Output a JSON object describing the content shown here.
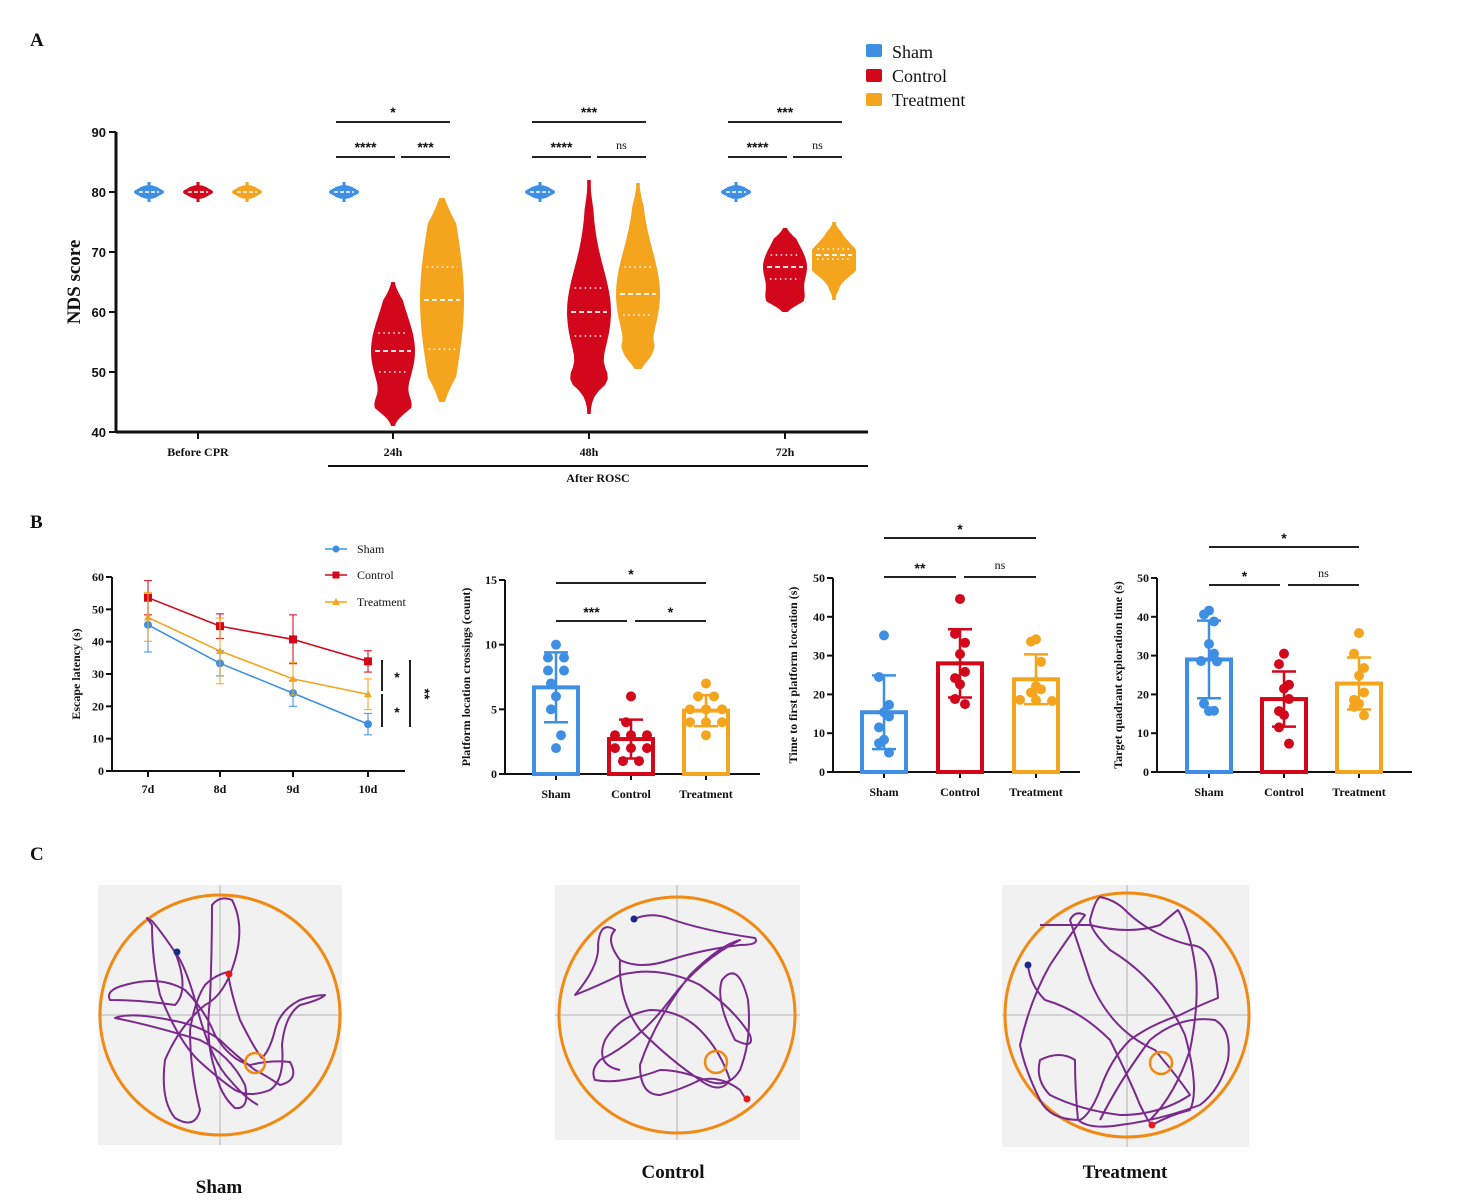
{
  "colors": {
    "Sham": "#3e8fe3",
    "Control": "#d2071b",
    "Treatment": "#f5a41e",
    "axis": "#111111",
    "path": "#7a2a8c",
    "pool": "#f08a12"
  },
  "panel_labels": {
    "A": "A",
    "B": "B",
    "C": "C"
  },
  "chart_data": [
    {
      "id": "A",
      "type": "violin",
      "title": "",
      "ylabel": "NDS score",
      "xlabel": "",
      "ylim": [
        40,
        90
      ],
      "yticks": [
        40,
        50,
        60,
        70,
        80,
        90
      ],
      "legend": {
        "position": "top-right",
        "entries": [
          "Sham",
          "Control",
          "Treatment"
        ]
      },
      "categories": [
        "Before CPR",
        "24h",
        "48h",
        "72h"
      ],
      "group_bracket_label": "After ROSC",
      "series": [
        {
          "name": "Sham",
          "violins": [
            {
              "category": "Before CPR",
              "min": 79,
              "max": 81,
              "median": 80,
              "q1": 80,
              "q3": 80
            },
            {
              "category": "24h",
              "min": 79,
              "max": 81,
              "median": 80,
              "q1": 80,
              "q3": 80
            },
            {
              "category": "48h",
              "min": 79,
              "max": 81,
              "median": 80,
              "q1": 80,
              "q3": 80
            },
            {
              "category": "72h",
              "min": 79,
              "max": 81,
              "median": 80,
              "q1": 80,
              "q3": 80
            }
          ]
        },
        {
          "name": "Control",
          "violins": [
            {
              "category": "Before CPR",
              "min": 79,
              "max": 81,
              "median": 80,
              "q1": 80,
              "q3": 80
            },
            {
              "category": "24h",
              "min": 41,
              "max": 65,
              "median": 53.5,
              "q1": 50,
              "q3": 56.5
            },
            {
              "category": "48h",
              "min": 43,
              "max": 82,
              "median": 60,
              "q1": 56,
              "q3": 64
            },
            {
              "category": "72h",
              "min": 60,
              "max": 74,
              "median": 67.5,
              "q1": 65.5,
              "q3": 69.5
            }
          ]
        },
        {
          "name": "Treatment",
          "violins": [
            {
              "category": "Before CPR",
              "min": 79,
              "max": 81,
              "median": 80,
              "q1": 80,
              "q3": 80
            },
            {
              "category": "24h",
              "min": 45,
              "max": 79,
              "median": 62,
              "q1": 53.8,
              "q3": 67.5
            },
            {
              "category": "48h",
              "min": 50.5,
              "max": 81.5,
              "median": 63,
              "q1": 59.5,
              "q3": 67.5
            },
            {
              "category": "72h",
              "min": 62,
              "max": 75,
              "median": 69.5,
              "q1": 68.8,
              "q3": 70.5
            }
          ]
        }
      ],
      "significance": [
        {
          "category": "24h",
          "pair": [
            "Sham",
            "Treatment"
          ],
          "label": "*",
          "level": 2
        },
        {
          "category": "24h",
          "pair": [
            "Sham",
            "Control"
          ],
          "label": "****",
          "level": 1
        },
        {
          "category": "24h",
          "pair": [
            "Control",
            "Treatment"
          ],
          "label": "***",
          "level": 1
        },
        {
          "category": "48h",
          "pair": [
            "Sham",
            "Treatment"
          ],
          "label": "***",
          "level": 2
        },
        {
          "category": "48h",
          "pair": [
            "Sham",
            "Control"
          ],
          "label": "****",
          "level": 1
        },
        {
          "category": "48h",
          "pair": [
            "Control",
            "Treatment"
          ],
          "label": "ns",
          "level": 1
        },
        {
          "category": "72h",
          "pair": [
            "Sham",
            "Treatment"
          ],
          "label": "***",
          "level": 2
        },
        {
          "category": "72h",
          "pair": [
            "Sham",
            "Control"
          ],
          "label": "****",
          "level": 1
        },
        {
          "category": "72h",
          "pair": [
            "Control",
            "Treatment"
          ],
          "label": "ns",
          "level": 1
        }
      ]
    },
    {
      "id": "B1",
      "type": "line",
      "title": "",
      "ylabel": "Escape latency (s)",
      "xlabel": "",
      "x": [
        "7d",
        "8d",
        "9d",
        "10d"
      ],
      "ylim": [
        0,
        60
      ],
      "yticks": [
        0,
        10,
        20,
        30,
        40,
        50,
        60
      ],
      "legend": {
        "position": "top-right",
        "entries": [
          "Sham",
          "Control",
          "Treatment"
        ]
      },
      "series": [
        {
          "name": "Sham",
          "marker": "circle",
          "values": [
            45.2,
            33.3,
            24.1,
            14.5
          ],
          "err_low": [
            36.8,
            29.4,
            20.0,
            11.2
          ],
          "err_high": [
            53.8,
            37.2,
            28.0,
            17.8
          ]
        },
        {
          "name": "Control",
          "marker": "square",
          "values": [
            53.6,
            44.8,
            40.7,
            33.9
          ],
          "err_low": [
            48.3,
            41.0,
            33.2,
            30.6
          ],
          "err_high": [
            58.9,
            48.6,
            48.3,
            37.2
          ]
        },
        {
          "name": "Treatment",
          "marker": "triangle",
          "values": [
            47.5,
            37.1,
            28.5,
            23.7
          ],
          "err_low": [
            40.1,
            27.0,
            23.5,
            19.0
          ],
          "err_high": [
            55.2,
            47.3,
            33.6,
            28.5
          ]
        }
      ],
      "significance": [
        {
          "pair": [
            "Control",
            "Treatment"
          ],
          "label": "*"
        },
        {
          "pair": [
            "Treatment",
            "Sham"
          ],
          "label": "*"
        },
        {
          "pair": [
            "Control",
            "Sham"
          ],
          "label": "**"
        }
      ]
    },
    {
      "id": "B2",
      "type": "bar",
      "ylabel": "Platform location crossings (count)",
      "xlabel": "",
      "categories": [
        "Sham",
        "Control",
        "Treatment"
      ],
      "ylim": [
        0,
        15
      ],
      "yticks": [
        0,
        5,
        10,
        15
      ],
      "values": [
        6.7,
        2.7,
        4.9
      ],
      "sd": [
        2.7,
        1.5,
        1.2
      ],
      "points": [
        [
          10,
          9,
          9,
          8,
          8,
          7,
          6,
          5,
          3,
          2
        ],
        [
          6,
          4,
          3,
          3,
          3,
          2,
          2,
          2,
          1,
          1
        ],
        [
          7,
          6,
          6,
          5,
          5,
          5,
          4,
          4,
          4,
          3
        ]
      ],
      "significance": [
        {
          "pair": [
            "Sham",
            "Treatment"
          ],
          "label": "*",
          "level": 2
        },
        {
          "pair": [
            "Sham",
            "Control"
          ],
          "label": "***",
          "level": 1
        },
        {
          "pair": [
            "Control",
            "Treatment"
          ],
          "label": "*",
          "level": 1
        }
      ]
    },
    {
      "id": "B3",
      "type": "bar",
      "ylabel": "Time to first platform lcocation (s)",
      "xlabel": "",
      "categories": [
        "Sham",
        "Control",
        "Treatment"
      ],
      "ylim": [
        0,
        50
      ],
      "yticks": [
        0,
        10,
        20,
        30,
        40,
        50
      ],
      "values": [
        15.4,
        28.0,
        23.9
      ],
      "sd": [
        9.5,
        8.8,
        6.4
      ],
      "points": [
        [
          35.2,
          24.5,
          17.3,
          15.4,
          14.3,
          11.5,
          8.3,
          7.4,
          5.0
        ],
        [
          44.6,
          35.6,
          33.3,
          30.4,
          25.8,
          24.2,
          22.6,
          18.8,
          17.5
        ],
        [
          34.2,
          33.6,
          28.4,
          22.1,
          21.3,
          20.5,
          18.6,
          18.5,
          18.3
        ]
      ],
      "significance": [
        {
          "pair": [
            "Sham",
            "Treatment"
          ],
          "label": "*",
          "level": 2
        },
        {
          "pair": [
            "Sham",
            "Control"
          ],
          "label": "**",
          "level": 1
        },
        {
          "pair": [
            "Control",
            "Treatment"
          ],
          "label": "ns",
          "level": 1
        }
      ]
    },
    {
      "id": "B4",
      "type": "bar",
      "ylabel": "Target quadrant exploration time (s)",
      "xlabel": "",
      "categories": [
        "Sham",
        "Control",
        "Treatment"
      ],
      "ylim": [
        0,
        50
      ],
      "yticks": [
        0,
        10,
        20,
        30,
        40,
        50
      ],
      "values": [
        29.0,
        18.8,
        22.8
      ],
      "sd": [
        10.0,
        7.1,
        6.7
      ],
      "points": [
        [
          41.6,
          40.6,
          38.8,
          33.0,
          30.5,
          28.6,
          28.5,
          17.6,
          15.8,
          15.7
        ],
        [
          30.5,
          27.8,
          22.5,
          21.5,
          18.8,
          15.7,
          14.7,
          11.5,
          7.3
        ],
        [
          35.8,
          30.5,
          26.8,
          24.8,
          20.5,
          18.6,
          17.6,
          16.8,
          14.6
        ]
      ],
      "significance": [
        {
          "pair": [
            "Sham",
            "Treatment"
          ],
          "label": "*",
          "level": 2
        },
        {
          "pair": [
            "Sham",
            "Control"
          ],
          "label": "*",
          "level": 1
        },
        {
          "pair": [
            "Control",
            "Treatment"
          ],
          "label": "ns",
          "level": 1
        }
      ]
    }
  ],
  "maze_tracks": [
    {
      "label": "Sham"
    },
    {
      "label": "Control"
    },
    {
      "label": "Treatment"
    }
  ]
}
